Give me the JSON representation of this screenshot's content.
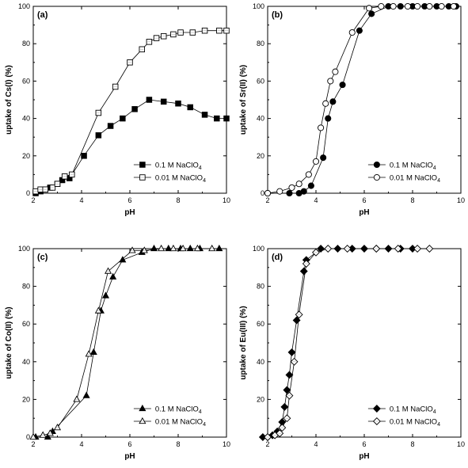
{
  "figure": {
    "legend_labels": [
      "0.1 M NaClO",
      "0.01 M NaClO"
    ],
    "legend_subscript": "4",
    "colors": {
      "axis": "#000000",
      "filled": "#000000",
      "open_fill": "#ffffff"
    }
  },
  "chart_data": [
    {
      "type": "scatter",
      "panel_label": "(a)",
      "xlabel": "pH",
      "ylabel": "uptake of Cs(I) (%)",
      "xlim": [
        2,
        10
      ],
      "ylim": [
        0,
        100
      ],
      "xticks": [
        "2",
        "4",
        "6",
        "8",
        "10"
      ],
      "yticks": [
        "0",
        "20",
        "40",
        "60",
        "80",
        "100"
      ],
      "grid": false,
      "legend_position": "bottom-right",
      "marker": "square",
      "lines": "fitted curves",
      "series": [
        {
          "name": "0.1 M NaClO4",
          "filled": true,
          "x": [
            2.1,
            2.3,
            2.5,
            2.7,
            3.0,
            3.2,
            3.5,
            4.1,
            4.7,
            5.2,
            5.7,
            6.2,
            6.8,
            7.4,
            8.0,
            8.5,
            9.1,
            9.6,
            10.0
          ],
          "y": [
            0,
            1,
            2,
            3,
            5,
            7,
            8,
            20,
            31,
            36,
            40,
            45,
            50,
            49,
            48,
            46,
            42,
            40,
            40
          ]
        },
        {
          "name": "0.01 M NaClO4",
          "filled": false,
          "x": [
            2.1,
            2.3,
            2.5,
            2.8,
            3.0,
            3.3,
            3.6,
            4.7,
            5.4,
            6.0,
            6.5,
            6.8,
            7.1,
            7.4,
            7.8,
            8.1,
            8.6,
            9.1,
            9.7,
            10.0
          ],
          "y": [
            1,
            2,
            2,
            3,
            5,
            9,
            10,
            43,
            57,
            70,
            77,
            81,
            83,
            84,
            85,
            86,
            86,
            87,
            87,
            87
          ]
        }
      ]
    },
    {
      "type": "scatter",
      "panel_label": "(b)",
      "xlabel": "pH",
      "ylabel": "uptake of Sr(II) (%)",
      "xlim": [
        2,
        10
      ],
      "ylim": [
        0,
        100
      ],
      "xticks": [
        "2",
        "4",
        "6",
        "8",
        "10"
      ],
      "yticks": [
        "0",
        "20",
        "40",
        "60",
        "80",
        "100"
      ],
      "grid": false,
      "legend_position": "bottom-right",
      "marker": "circle",
      "lines": "fitted curves",
      "series": [
        {
          "name": "0.1 M NaClO4",
          "filled": true,
          "x": [
            2.0,
            2.9,
            3.3,
            3.5,
            3.8,
            4.3,
            4.5,
            4.7,
            5.1,
            5.8,
            6.3,
            7.0,
            7.5,
            8.0,
            8.5,
            9.0,
            9.5,
            9.8
          ],
          "y": [
            0,
            0,
            0,
            1,
            4,
            19,
            40,
            49,
            58,
            87,
            96,
            100,
            100,
            100,
            100,
            100,
            100,
            100
          ]
        },
        {
          "name": "0.01 M NaClO4",
          "filled": false,
          "x": [
            2.0,
            2.5,
            3.0,
            3.3,
            3.7,
            4.0,
            4.2,
            4.4,
            4.6,
            4.8,
            5.5,
            6.2,
            6.7,
            7.2,
            7.8,
            8.2,
            8.7,
            9.2,
            9.7
          ],
          "y": [
            0,
            1,
            3,
            5,
            10,
            17,
            35,
            48,
            60,
            65,
            86,
            99,
            100,
            100,
            100,
            100,
            100,
            100,
            100
          ]
        }
      ]
    },
    {
      "type": "scatter",
      "panel_label": "(c)",
      "xlabel": "pH",
      "ylabel": "uptake of Co(II) (%)",
      "xlim": [
        2,
        10
      ],
      "ylim": [
        0,
        100
      ],
      "xticks": [
        "2",
        "4",
        "6",
        "8",
        "10"
      ],
      "yticks": [
        "0",
        "20",
        "40",
        "60",
        "80",
        "100"
      ],
      "grid": false,
      "legend_position": "bottom-right",
      "marker": "triangle",
      "lines": "fitted curves",
      "series": [
        {
          "name": "0.1 M NaClO4",
          "filled": true,
          "x": [
            2.1,
            2.6,
            2.8,
            4.2,
            4.5,
            4.8,
            5.0,
            5.3,
            5.7,
            6.5,
            7.0,
            7.6,
            8.1,
            8.5,
            8.9,
            9.7
          ],
          "y": [
            0,
            0,
            3,
            22,
            45,
            67,
            75,
            85,
            94,
            98,
            100,
            100,
            100,
            100,
            100,
            100
          ]
        },
        {
          "name": "0.01 M NaClO4",
          "filled": false,
          "x": [
            2.0,
            2.4,
            2.7,
            3.0,
            3.8,
            4.3,
            4.7,
            5.1,
            6.1,
            6.6,
            7.3,
            7.8,
            8.2,
            8.8,
            9.4
          ],
          "y": [
            0,
            1,
            2,
            5,
            20,
            44,
            67,
            88,
            99,
            99,
            100,
            100,
            100,
            100,
            100
          ]
        }
      ]
    },
    {
      "type": "scatter",
      "panel_label": "(d)",
      "xlabel": "pH",
      "ylabel": "uptake of Eu(III) (%)",
      "xlim": [
        2,
        10
      ],
      "ylim": [
        0,
        100
      ],
      "xticks": [
        "2",
        "4",
        "6",
        "8",
        "10"
      ],
      "yticks": [
        "0",
        "20",
        "40",
        "60",
        "80",
        "100"
      ],
      "grid": false,
      "legend_position": "bottom-right",
      "marker": "diamond",
      "lines": "fitted curves",
      "series": [
        {
          "name": "0.1 M NaClO4",
          "filled": true,
          "x": [
            1.8,
            2.0,
            2.2,
            2.4,
            2.6,
            2.7,
            2.8,
            2.9,
            3.0,
            3.2,
            3.5,
            3.6,
            4.2,
            4.9,
            5.5,
            6.0,
            6.5,
            7.0,
            7.5,
            8.0
          ],
          "y": [
            0,
            0,
            1,
            3,
            8,
            16,
            25,
            33,
            45,
            62,
            88,
            94,
            100,
            100,
            100,
            100,
            100,
            100,
            100,
            100
          ]
        },
        {
          "name": "0.01 M NaClO4",
          "filled": false,
          "x": [
            2.0,
            2.3,
            2.5,
            2.6,
            2.8,
            2.9,
            3.1,
            3.3,
            3.6,
            4.0,
            4.5,
            5.3,
            6.5,
            7.4,
            8.2,
            8.7
          ],
          "y": [
            0,
            1,
            2,
            5,
            10,
            22,
            40,
            65,
            92,
            98,
            100,
            100,
            100,
            100,
            100,
            100
          ]
        }
      ]
    }
  ]
}
